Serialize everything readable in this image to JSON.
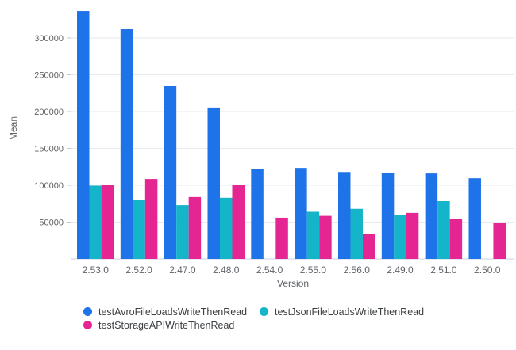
{
  "chart_data": {
    "type": "bar",
    "title": "",
    "xlabel": "Version",
    "ylabel": "Mean",
    "categories": [
      "2.53.0",
      "2.52.0",
      "2.47.0",
      "2.48.0",
      "2.54.0",
      "2.55.0",
      "2.56.0",
      "2.49.0",
      "2.51.0",
      "2.50.0"
    ],
    "series": [
      {
        "name": "testAvroFileLoadsWriteThenRead",
        "color": "#1f73e8",
        "values": [
          336500,
          312000,
          235500,
          205500,
          121500,
          123500,
          118000,
          117000,
          116000,
          109500
        ]
      },
      {
        "name": "testJsonFileLoadsWriteThenRead",
        "color": "#15b5c9",
        "values": [
          99500,
          80500,
          73000,
          83000,
          null,
          64000,
          68000,
          60000,
          78500,
          null
        ]
      },
      {
        "name": "testStorageAPIWriteThenRead",
        "color": "#e52592",
        "values": [
          101000,
          108500,
          84000,
          100500,
          56000,
          58500,
          34000,
          62500,
          54500,
          48500
        ]
      }
    ],
    "y_ticks": [
      50000,
      100000,
      150000,
      200000,
      250000,
      300000
    ],
    "ylim": [
      0,
      351600
    ],
    "grid": true,
    "legend_position": "bottom"
  },
  "style_colors": {
    "gridline": "#e9eaee",
    "baseline": "#dce0e8",
    "tick_mark": "#c4c7cc",
    "y_tick_text": "#616161",
    "x_tick_text": "#5f6368",
    "legend_text": "#3c4043"
  }
}
